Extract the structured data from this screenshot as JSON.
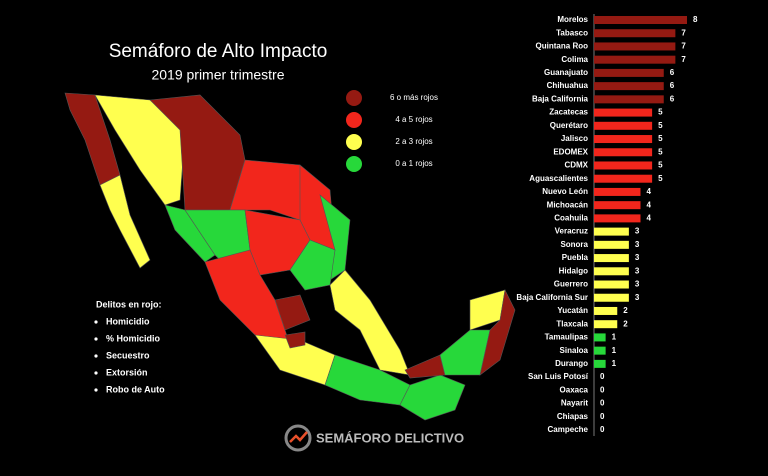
{
  "header": {
    "title": "Semáforo de Alto Impacto",
    "subtitle": "2019 primer trimestre"
  },
  "legend": [
    {
      "label": "6 o más rojos",
      "color": "#951a12"
    },
    {
      "label": "4 a 5 rojos",
      "color": "#f2261c"
    },
    {
      "label": "2 a 3  rojos",
      "color": "#ffff4f"
    },
    {
      "label": "0 a 1 rojos",
      "color": "#27d83a"
    }
  ],
  "notes": {
    "title": "Delitos en rojo:",
    "items": [
      "Homicidio",
      "% Homicidio",
      "Secuestro",
      "Extorsión",
      "Robo de Auto"
    ]
  },
  "brand": "SEMÁFORO DELICTIVO",
  "chart_data": {
    "type": "bar",
    "orientation": "horizontal",
    "categories": [
      "Morelos",
      "Tabasco",
      "Quintana Roo",
      "Colima",
      "Guanajuato",
      "Chihuahua",
      "Baja California",
      "Zacatecas",
      "Querétaro",
      "Jalisco",
      "EDOMEX",
      "CDMX",
      "Aguascalientes",
      "Nuevo León",
      "Michoacán",
      "Coahuila",
      "Veracruz",
      "Sonora",
      "Puebla",
      "Hidalgo",
      "Guerrero",
      "Baja California Sur",
      "Yucatán",
      "Tlaxcala",
      "Tamaulipas",
      "Sinaloa",
      "Durango",
      "San Luis Potosí",
      "Oaxaca",
      "Nayarit",
      "Chiapas",
      "Campeche"
    ],
    "values": [
      8,
      7,
      7,
      7,
      6,
      6,
      6,
      5,
      5,
      5,
      5,
      5,
      5,
      4,
      4,
      4,
      3,
      3,
      3,
      3,
      3,
      3,
      2,
      2,
      1,
      1,
      1,
      0,
      0,
      0,
      0,
      0
    ],
    "colors": [
      "#951a12",
      "#951a12",
      "#951a12",
      "#951a12",
      "#951a12",
      "#951a12",
      "#951a12",
      "#f2261c",
      "#f2261c",
      "#f2261c",
      "#f2261c",
      "#f2261c",
      "#f2261c",
      "#f2261c",
      "#f2261c",
      "#f2261c",
      "#ffff4f",
      "#ffff4f",
      "#ffff4f",
      "#ffff4f",
      "#ffff4f",
      "#ffff4f",
      "#ffff4f",
      "#ffff4f",
      "#27d83a",
      "#27d83a",
      "#27d83a",
      "#27d83a",
      "#27d83a",
      "#27d83a",
      "#27d83a",
      "#27d83a"
    ]
  }
}
